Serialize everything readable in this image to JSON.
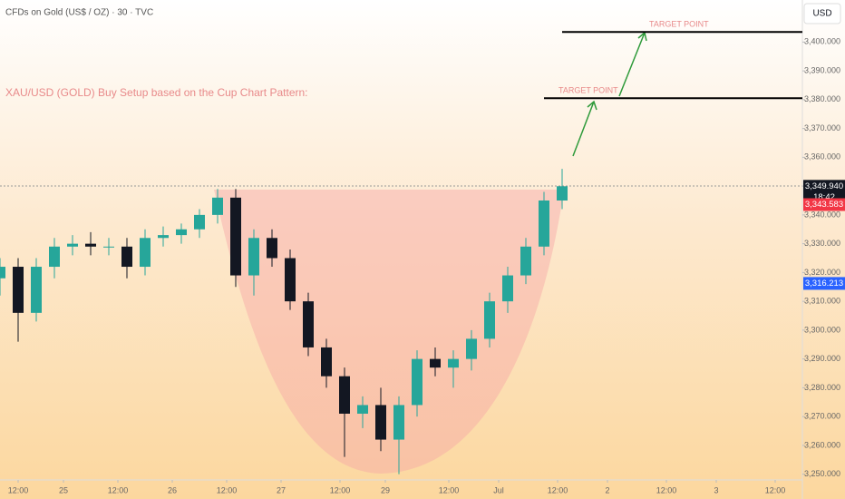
{
  "chart_data": {
    "type": "candlestick",
    "title": "CFDs on Gold (US$ / OZ) · 30 · TVC",
    "annotation": "XAU/USD (GOLD) Buy Setup based on the Cup Chart Pattern:",
    "currency": "USD",
    "up_color": "#26a69a",
    "down_color": "#131722",
    "x": [
      0,
      4,
      8,
      12,
      16,
      20,
      24,
      28,
      32,
      36,
      40,
      44,
      48,
      52,
      56,
      60,
      64,
      68,
      72,
      76,
      80,
      84,
      88,
      92,
      96,
      100,
      104,
      108,
      112,
      116,
      120,
      124
    ],
    "open": [
      3318,
      3322,
      3306,
      3322,
      3329,
      3330,
      3329,
      3329,
      3322,
      3332,
      3333,
      3335,
      3340,
      3346,
      3319,
      3332,
      3325,
      3310,
      3294,
      3284,
      3271,
      3274,
      3262,
      3274,
      3290,
      3287,
      3290,
      3297,
      3310,
      3319,
      3329,
      3345
    ],
    "high": [
      3325,
      3325,
      3325,
      3332,
      3333,
      3334,
      3332,
      3332,
      3335,
      3336,
      3337,
      3342,
      3349,
      3349,
      3335,
      3335,
      3328,
      3313,
      3297,
      3287,
      3277,
      3280,
      3277,
      3293,
      3294,
      3293,
      3300,
      3313,
      3322,
      3332,
      3348,
      3356
    ],
    "low": [
      3312,
      3296,
      3303,
      3318,
      3326,
      3326,
      3326,
      3318,
      3319,
      3329,
      3330,
      3332,
      3337,
      3315,
      3312,
      3322,
      3307,
      3291,
      3280,
      3256,
      3266,
      3258,
      3250,
      3270,
      3284,
      3280,
      3286,
      3294,
      3306,
      3316,
      3326,
      3342
    ],
    "close": [
      3322,
      3306,
      3322,
      3329,
      3330,
      3329,
      3329,
      3322,
      3332,
      3333,
      3335,
      3340,
      3346,
      3319,
      3332,
      3325,
      3310,
      3294,
      3284,
      3271,
      3274,
      3262,
      3274,
      3290,
      3287,
      3290,
      3297,
      3310,
      3319,
      3329,
      3345,
      3349.94
    ],
    "xlim": [
      0,
      177
    ],
    "xticks": [
      {
        "value": 4,
        "label": "12:00"
      },
      {
        "value": 14,
        "label": "25"
      },
      {
        "value": 26,
        "label": "12:00"
      },
      {
        "value": 38,
        "label": "26"
      },
      {
        "value": 50,
        "label": "12:00"
      },
      {
        "value": 62,
        "label": "27"
      },
      {
        "value": 75,
        "label": "12:00"
      },
      {
        "value": 85,
        "label": "29"
      },
      {
        "value": 99,
        "label": "12:00"
      },
      {
        "value": 110,
        "label": "Jul"
      },
      {
        "value": 123,
        "label": "12:00"
      },
      {
        "value": 134,
        "label": "2"
      },
      {
        "value": 147,
        "label": "12:00"
      },
      {
        "value": 158,
        "label": "3"
      },
      {
        "value": 171,
        "label": "12:00"
      }
    ],
    "ylim": [
      3248,
      3414.6
    ],
    "yticks": [
      {
        "value": 3250,
        "label": "3,250.000"
      },
      {
        "value": 3260,
        "label": "3,260.000"
      },
      {
        "value": 3270,
        "label": "3,270.000"
      },
      {
        "value": 3280,
        "label": "3,280.000"
      },
      {
        "value": 3290,
        "label": "3,290.000"
      },
      {
        "value": 3300,
        "label": "3,300.000"
      },
      {
        "value": 3310,
        "label": "3,310.000"
      },
      {
        "value": 3320,
        "label": "3,320.000"
      },
      {
        "value": 3330,
        "label": "3,330.000"
      },
      {
        "value": 3340,
        "label": "3,340.000"
      },
      {
        "value": 3350,
        "label": "3,350.000"
      },
      {
        "value": 3360,
        "label": "3,360.000"
      },
      {
        "value": 3370,
        "label": "3,370.000"
      },
      {
        "value": 3380,
        "label": "3,380.000"
      },
      {
        "value": 3390,
        "label": "3,390.000"
      },
      {
        "value": 3400,
        "label": "3,400.000"
      }
    ],
    "targets": [
      {
        "label": "TARGET POINT",
        "value": 3380.5,
        "x_start": 120,
        "x_end": 177
      },
      {
        "label": "TARGET POINT",
        "value": 3403.5,
        "x_start": 124,
        "x_end": 177
      }
    ],
    "price_labels": [
      {
        "value": 3349.94,
        "label": "3,349.940",
        "countdown": "18:42",
        "color": "#131722"
      },
      {
        "value": 3343.583,
        "label": "3,343.583",
        "color": "#f23645"
      },
      {
        "value": 3316.213,
        "label": "3,316.213",
        "color": "#2962ff"
      }
    ]
  }
}
